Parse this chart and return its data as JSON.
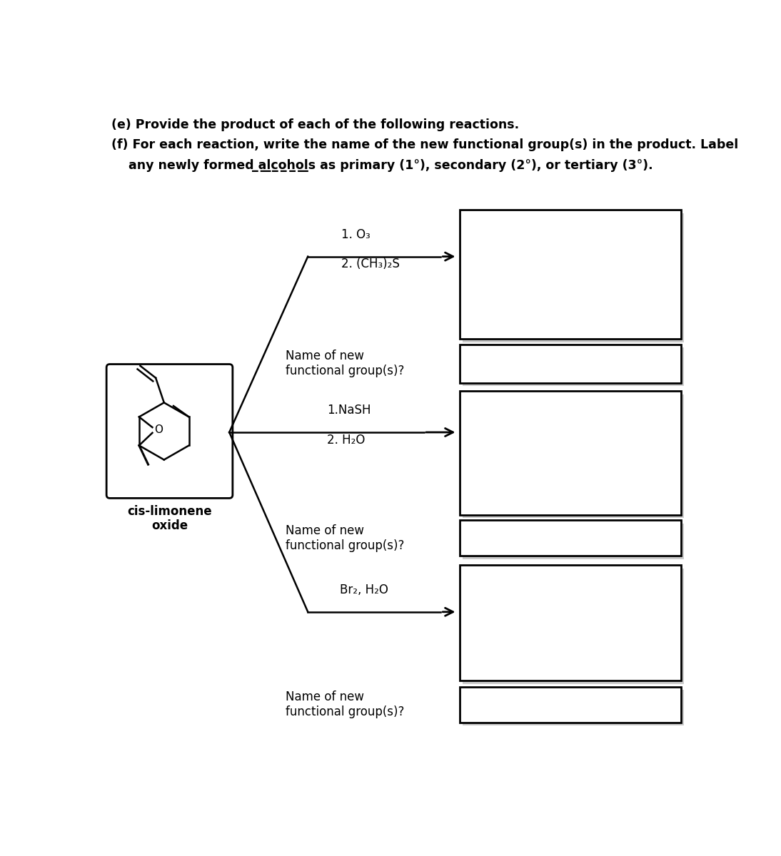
{
  "title_e": "(e) Provide the product of each of the following reactions.",
  "title_f_line1": "(f) For each reaction, write the name of the new functional group(s) in the product. Label",
  "title_f_line2": "    any newly formed ̲a̲l̲c̲o̲h̲o̲l̲s as primary (1°), secondary (2°), or tertiary (3°).",
  "reagent1_line1": "1. O₃",
  "reagent1_line2": "2. (CH₃)₂S",
  "reagent2_line1": "1.NaSH",
  "reagent2_line2": "2. H₂O",
  "reagent3": "Br₂, H₂O",
  "name_label": "Name of new\nfunctional group(s)?",
  "mol_label_line1": "cis-limonene",
  "mol_label_line2": "oxide",
  "O_label": "O",
  "bg_color": "#ffffff",
  "text_color": "#000000",
  "font_size_header": 12.5,
  "font_size_body": 12.0,
  "font_size_mol": 12.0
}
